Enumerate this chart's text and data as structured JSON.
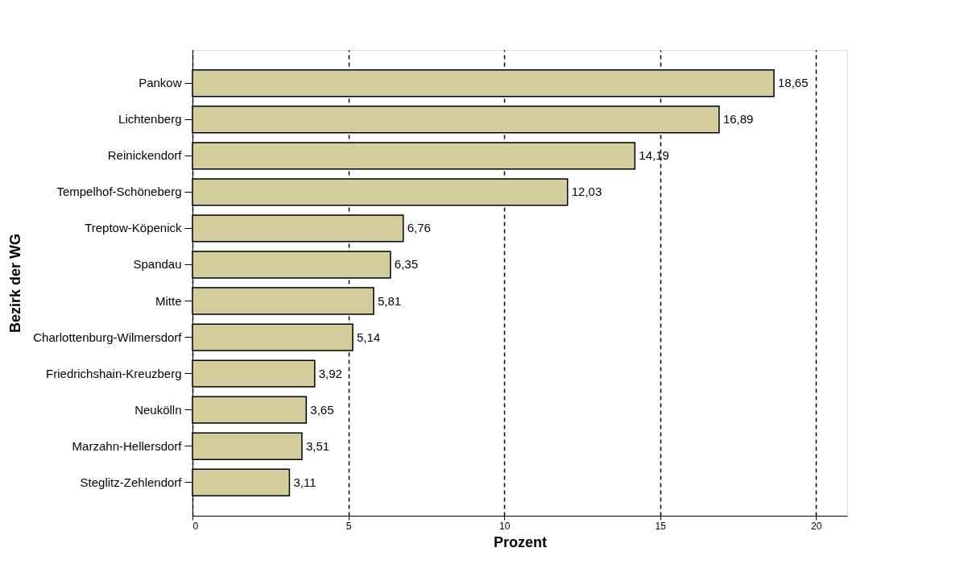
{
  "chart_data": {
    "type": "bar",
    "orientation": "horizontal",
    "xlabel": "Prozent",
    "ylabel": "Bezirk der WG",
    "categories": [
      "Pankow",
      "Lichtenberg",
      "Reinickendorf",
      "Tempelhof-Schöneberg",
      "Treptow-Köpenick",
      "Spandau",
      "Mitte",
      "Charlottenburg-Wilmersdorf",
      "Friedrichshain-Kreuzberg",
      "Neukölln",
      "Marzahn-Hellersdorf",
      "Steglitz-Zehlendorf"
    ],
    "values": [
      18.65,
      16.89,
      14.19,
      12.03,
      6.76,
      6.35,
      5.81,
      5.14,
      3.92,
      3.65,
      3.51,
      3.11
    ],
    "value_labels": [
      "18,65",
      "16,89",
      "14,19",
      "12,03",
      "6,76",
      "6,35",
      "5,81",
      "5,14",
      "3,92",
      "3,65",
      "3,51",
      "3,11"
    ],
    "color": "#d3cd9b",
    "xlim": [
      0,
      21
    ],
    "xticks": [
      0,
      5,
      10,
      15,
      20
    ],
    "grid": "x"
  }
}
